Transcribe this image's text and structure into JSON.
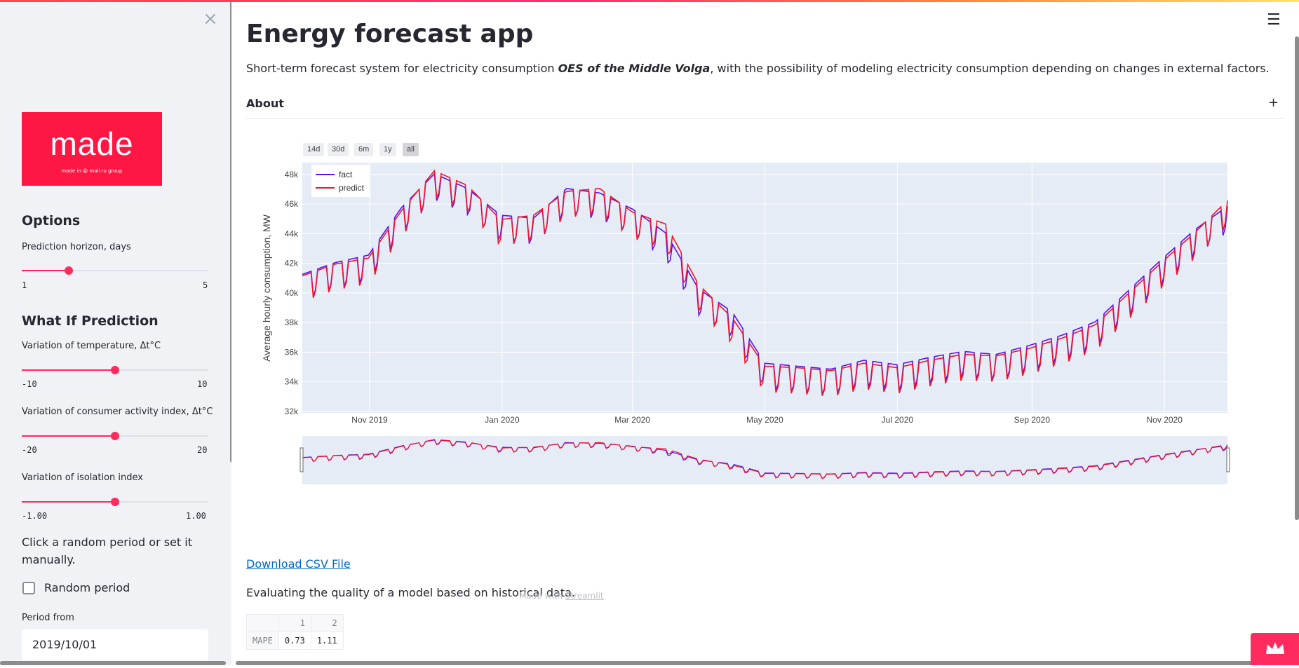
{
  "app": {
    "title": "Energy forecast app",
    "description_pre": "Short-term forecast system for electricity consumption ",
    "description_bold": "OES of the Middle Volga",
    "description_post": ", with the possibility of modeling electricity consumption depending on changes in external factors.",
    "about_label": "About",
    "about_toggle": "+",
    "menu_icon": "hamburger-icon",
    "csv_link": "Download CSV File",
    "eval_text": "Evaluating the quality of a model based on historical data.",
    "made_with": "Made with",
    "made_with_link": "Streamlit",
    "brand_color": "#ff2b5e"
  },
  "sidebar": {
    "close_icon": "×",
    "logo_text": "made",
    "logo_subtext": "made in @ mail.ru group",
    "options_heading": "Options",
    "horizon": {
      "label": "Prediction horizon, days",
      "min": "1",
      "max": "5",
      "value": 2
    },
    "whatif_heading": "What If Prediction",
    "temperature": {
      "label": "Variation of temperature, Δt°C",
      "min": "-10",
      "max": "10",
      "value": 0
    },
    "activity": {
      "label": "Variation of consumer activity index, Δt°C",
      "min": "-20",
      "max": "20",
      "value": 0
    },
    "isolation": {
      "label": "Variation of isolation index",
      "min": "-1.00",
      "max": "1.00",
      "value": 0
    },
    "random_text": "Click a random period or set it manually.",
    "random_checkbox": "Random period",
    "random_checked": false,
    "period_from_label": "Period from",
    "period_from_value": "2019/10/01"
  },
  "range_buttons": [
    "14d",
    "30d",
    "6m",
    "1y",
    "all"
  ],
  "range_active": "all",
  "chart_data": {
    "type": "line",
    "ylabel": "Average hourly consumption, MW",
    "x_ticks": [
      "Nov 2019",
      "Jan 2020",
      "Mar 2020",
      "May 2020",
      "Jul 2020",
      "Sep 2020",
      "Nov 2020"
    ],
    "y_ticks": [
      "32k",
      "34k",
      "36k",
      "38k",
      "40k",
      "42k",
      "44k",
      "46k",
      "48k"
    ],
    "ylim": [
      31900,
      48800
    ],
    "xlim": [
      "2019-10-01",
      "2020-11-30"
    ],
    "legend_position": "top-left",
    "grid": true,
    "rangeslider": true,
    "series": [
      {
        "name": "fact",
        "color": "#5a12f0"
      },
      {
        "name": "predict",
        "color": "#f0152b"
      }
    ],
    "x_dates": [
      "2019-10-01",
      "2019-10-15",
      "2019-11-01",
      "2019-11-15",
      "2019-12-01",
      "2019-12-15",
      "2020-01-01",
      "2020-01-15",
      "2020-02-01",
      "2020-02-15",
      "2020-03-01",
      "2020-03-15",
      "2020-04-01",
      "2020-04-15",
      "2020-05-01",
      "2020-05-15",
      "2020-06-01",
      "2020-06-15",
      "2020-07-01",
      "2020-07-15",
      "2020-08-01",
      "2020-08-15",
      "2020-09-01",
      "2020-09-15",
      "2020-10-01",
      "2020-10-15",
      "2020-11-01",
      "2020-11-15",
      "2020-11-30"
    ],
    "fact": [
      41000,
      41800,
      42300,
      45500,
      47800,
      46800,
      45000,
      44800,
      46800,
      46500,
      45400,
      43800,
      40000,
      38500,
      35000,
      34800,
      34600,
      35200,
      34900,
      35400,
      35800,
      35600,
      36200,
      36900,
      37800,
      39900,
      42000,
      44000,
      45600
    ],
    "predict": [
      40900,
      41700,
      42100,
      45300,
      48000,
      47000,
      44700,
      45000,
      46600,
      46800,
      45200,
      44400,
      40300,
      38100,
      34800,
      34700,
      34500,
      35000,
      34700,
      35200,
      35600,
      35500,
      36000,
      36700,
      37600,
      39700,
      41800,
      43800,
      46000
    ]
  }
}
